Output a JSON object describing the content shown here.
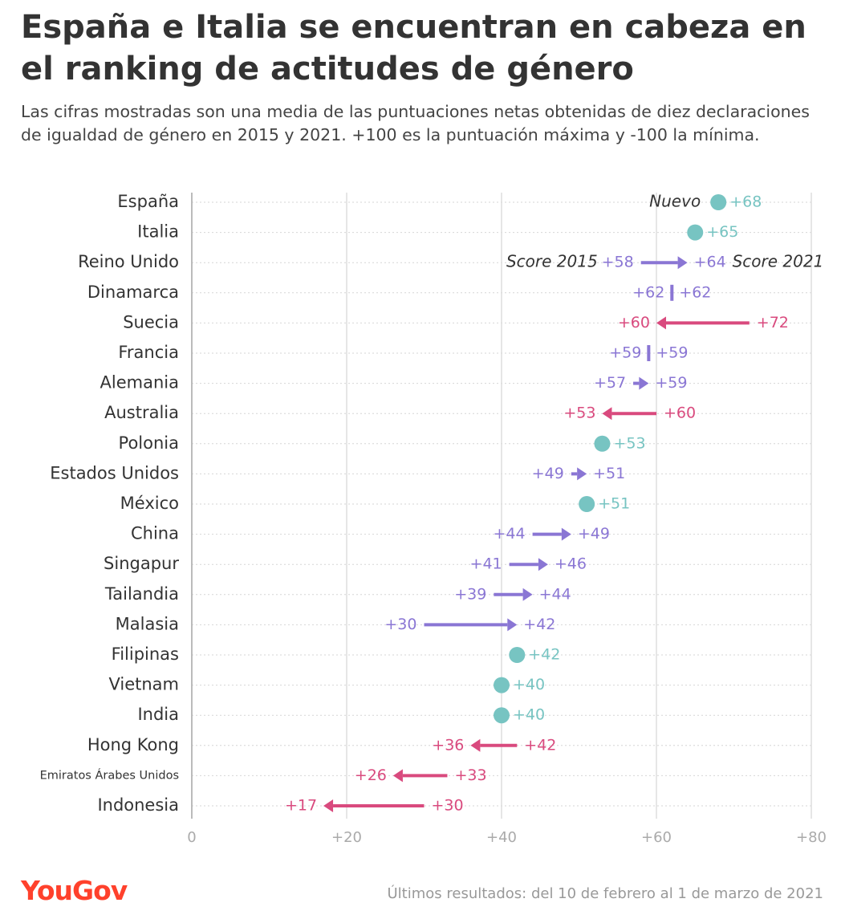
{
  "title": "España e Italia se encuentran en cabeza en el ranking de actitudes de género",
  "subtitle": "Las cifras mostradas son una media de las puntuaciones netas obtenidas de diez declaraciones de igualdad de género en 2015 y 2021. +100 es la puntuación máxima y -100 la mínima.",
  "logo": "YouGov",
  "footnote": "Últimos resultados: del 10 de febrero al 1 de marzo de 2021",
  "colors": {
    "new": "#77c4c2",
    "increase": "#8a76d4",
    "decrease": "#d94a7e"
  },
  "chart_data": {
    "type": "arrow-dot",
    "xlim": [
      0,
      80
    ],
    "x_ticks": [
      "0",
      "+20",
      "+40",
      "+60",
      "+80"
    ],
    "annotations": {
      "new": "Nuevo",
      "score2015": "Score 2015",
      "score2021": "Score 2021"
    },
    "rows": [
      {
        "country": "España",
        "score2015": null,
        "score2021": 68,
        "label2015": "",
        "label2021": "+68"
      },
      {
        "country": "Italia",
        "score2015": null,
        "score2021": 65,
        "label2015": "",
        "label2021": "+65"
      },
      {
        "country": "Reino Unido",
        "score2015": 58,
        "score2021": 64,
        "label2015": "+58",
        "label2021": "+64"
      },
      {
        "country": "Dinamarca",
        "score2015": 62,
        "score2021": 62,
        "label2015": "+62",
        "label2021": "+62"
      },
      {
        "country": "Suecia",
        "score2015": 72,
        "score2021": 60,
        "label2015": "+72",
        "label2021": "+60"
      },
      {
        "country": "Francia",
        "score2015": 59,
        "score2021": 59,
        "label2015": "+59",
        "label2021": "+59"
      },
      {
        "country": "Alemania",
        "score2015": 57,
        "score2021": 59,
        "label2015": "+57",
        "label2021": "+59"
      },
      {
        "country": "Australia",
        "score2015": 60,
        "score2021": 53,
        "label2015": "+60",
        "label2021": "+53"
      },
      {
        "country": "Polonia",
        "score2015": null,
        "score2021": 53,
        "label2015": "",
        "label2021": "+53"
      },
      {
        "country": "Estados Unidos",
        "score2015": 49,
        "score2021": 51,
        "label2015": "+49",
        "label2021": "+51"
      },
      {
        "country": "México",
        "score2015": null,
        "score2021": 51,
        "label2015": "",
        "label2021": "+51"
      },
      {
        "country": "China",
        "score2015": 44,
        "score2021": 49,
        "label2015": "+44",
        "label2021": "+49"
      },
      {
        "country": "Singapur",
        "score2015": 41,
        "score2021": 46,
        "label2015": "+41",
        "label2021": "+46"
      },
      {
        "country": "Tailandia",
        "score2015": 39,
        "score2021": 44,
        "label2015": "+39",
        "label2021": "+44"
      },
      {
        "country": "Malasia",
        "score2015": 30,
        "score2021": 42,
        "label2015": "+30",
        "label2021": "+42"
      },
      {
        "country": "Filipinas",
        "score2015": null,
        "score2021": 42,
        "label2015": "",
        "label2021": "+42"
      },
      {
        "country": "Vietnam",
        "score2015": null,
        "score2021": 40,
        "label2015": "",
        "label2021": "+40"
      },
      {
        "country": "India",
        "score2015": null,
        "score2021": 40,
        "label2015": "",
        "label2021": "+40"
      },
      {
        "country": "Hong Kong",
        "score2015": 42,
        "score2021": 36,
        "label2015": "+42",
        "label2021": "+36"
      },
      {
        "country": "Emiratos Árabes Unidos",
        "score2015": 33,
        "score2021": 26,
        "label2015": "+33",
        "label2021": "+26"
      },
      {
        "country": "Indonesia",
        "score2015": 30,
        "score2021": 17,
        "label2015": "+30",
        "label2021": "+17"
      }
    ]
  }
}
